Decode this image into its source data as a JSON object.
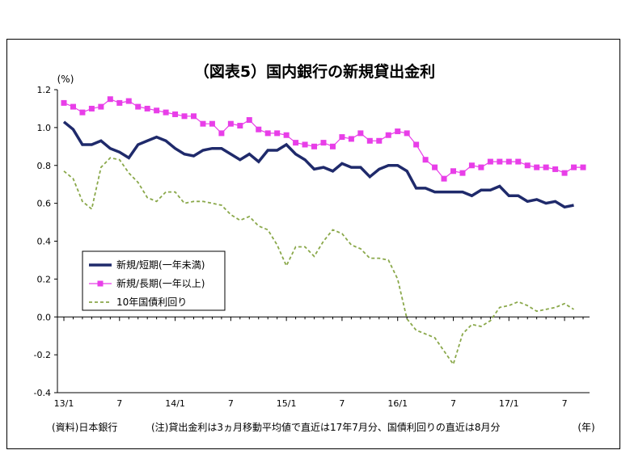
{
  "chart_data": {
    "type": "line",
    "title": "（図表5）国内銀行の新規貸出金利",
    "ylabel": "(%)",
    "xunit": "(年)",
    "ylim": [
      -0.4,
      1.2
    ],
    "yticks": [
      "1.2",
      "1.0",
      "0.8",
      "0.6",
      "0.4",
      "0.2",
      "0.0",
      "-0.2",
      "-0.4"
    ],
    "ytick_values": [
      1.2,
      1.0,
      0.8,
      0.6,
      0.4,
      0.2,
      0.0,
      -0.2,
      -0.4
    ],
    "xtick_labels": [
      {
        "label": "13/1",
        "index": 0
      },
      {
        "label": "7",
        "index": 6
      },
      {
        "label": "14/1",
        "index": 12
      },
      {
        "label": "7",
        "index": 18
      },
      {
        "label": "15/1",
        "index": 24
      },
      {
        "label": "7",
        "index": 30
      },
      {
        "label": "16/1",
        "index": 36
      },
      {
        "label": "7",
        "index": 42
      },
      {
        "label": "17/1",
        "index": 48
      },
      {
        "label": "7",
        "index": 54
      }
    ],
    "grid": false,
    "legend_position": "lower-left",
    "source_note": "(資料)日本銀行",
    "footnote": "(注)貸出金利は3ヵ月移動平均値で直近は17年7月分、国債利回りの直近は8月分",
    "series": [
      {
        "name": "新規/短期(一年未満)",
        "color": "#1f2a6b",
        "style": "thick-line",
        "values": [
          1.03,
          0.99,
          0.91,
          0.91,
          0.93,
          0.89,
          0.87,
          0.84,
          0.91,
          0.93,
          0.95,
          0.93,
          0.89,
          0.86,
          0.85,
          0.88,
          0.89,
          0.89,
          0.86,
          0.83,
          0.86,
          0.82,
          0.88,
          0.88,
          0.91,
          0.86,
          0.83,
          0.78,
          0.79,
          0.77,
          0.81,
          0.79,
          0.79,
          0.74,
          0.78,
          0.8,
          0.8,
          0.77,
          0.68,
          0.68,
          0.66,
          0.66,
          0.66,
          0.66,
          0.64,
          0.67,
          0.67,
          0.69,
          0.64,
          0.64,
          0.61,
          0.62,
          0.6,
          0.61,
          0.58,
          0.59
        ]
      },
      {
        "name": "新規/長期(一年以上)",
        "color": "#e83ee8",
        "style": "line-square-markers",
        "values": [
          1.13,
          1.11,
          1.08,
          1.1,
          1.11,
          1.15,
          1.13,
          1.14,
          1.11,
          1.1,
          1.09,
          1.08,
          1.07,
          1.06,
          1.06,
          1.02,
          1.02,
          0.97,
          1.02,
          1.01,
          1.04,
          0.99,
          0.97,
          0.97,
          0.96,
          0.92,
          0.91,
          0.9,
          0.92,
          0.9,
          0.95,
          0.94,
          0.97,
          0.93,
          0.93,
          0.96,
          0.98,
          0.97,
          0.91,
          0.83,
          0.79,
          0.73,
          0.77,
          0.76,
          0.8,
          0.79,
          0.82,
          0.82,
          0.82,
          0.82,
          0.8,
          0.79,
          0.79,
          0.78,
          0.76,
          0.79,
          0.79
        ]
      },
      {
        "name": "10年国債利回り",
        "color": "#8aa84a",
        "style": "dashed-line",
        "values": [
          0.77,
          0.73,
          0.61,
          0.57,
          0.79,
          0.84,
          0.83,
          0.76,
          0.71,
          0.63,
          0.61,
          0.66,
          0.66,
          0.6,
          0.61,
          0.61,
          0.6,
          0.59,
          0.54,
          0.51,
          0.53,
          0.48,
          0.46,
          0.38,
          0.27,
          0.37,
          0.37,
          0.32,
          0.4,
          0.46,
          0.44,
          0.38,
          0.36,
          0.31,
          0.31,
          0.3,
          0.2,
          -0.01,
          -0.07,
          -0.09,
          -0.11,
          -0.18,
          -0.25,
          -0.09,
          -0.04,
          -0.05,
          -0.02,
          0.05,
          0.06,
          0.08,
          0.06,
          0.03,
          0.04,
          0.05,
          0.07,
          0.04
        ]
      }
    ]
  }
}
